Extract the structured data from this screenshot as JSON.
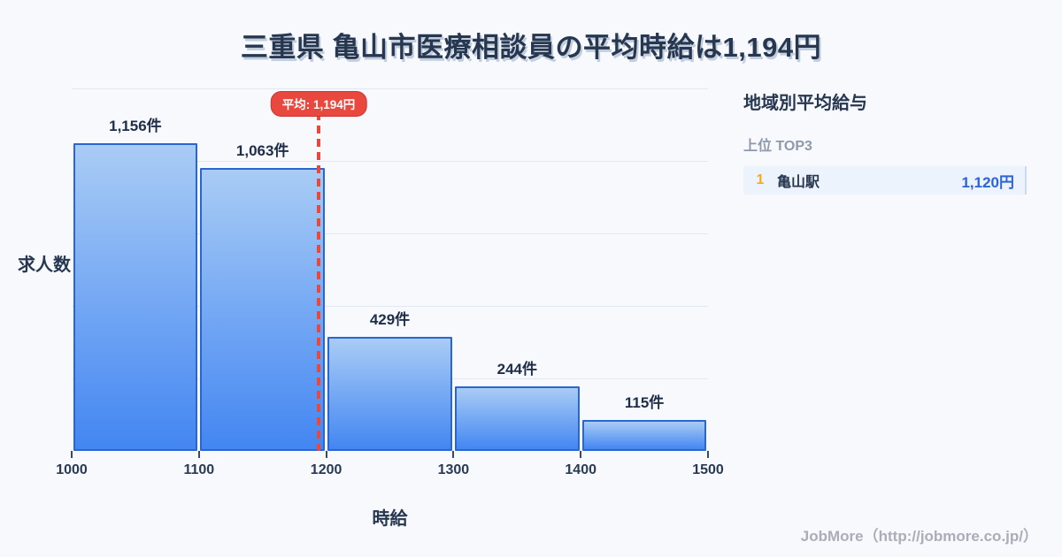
{
  "title": "三重県 亀山市医療相談員の平均時給は1,194円",
  "chart_data": {
    "type": "bar",
    "subtype": "histogram",
    "bin_edges": [
      1000,
      1100,
      1200,
      1300,
      1400,
      1500
    ],
    "categories": [
      "1000-1100",
      "1100-1200",
      "1200-1300",
      "1300-1400",
      "1400-1500"
    ],
    "values": [
      1156,
      1063,
      429,
      244,
      115
    ],
    "value_labels": [
      "1,156件",
      "1,063件",
      "429件",
      "244件",
      "115件"
    ],
    "x_ticks": [
      "1000",
      "1100",
      "1200",
      "1300",
      "1400",
      "1500"
    ],
    "xlabel": "時給",
    "ylabel": "求人数",
    "ylim": [
      0,
      1362
    ],
    "grid": "horizontal",
    "gridline_count": 5,
    "legend": "none",
    "mean": {
      "value": 1194,
      "label": "平均: 1,194円"
    },
    "colors": {
      "bar_top": "#a9ccf5",
      "bar_bottom": "#4386f2",
      "bar_border": "#2a66cf",
      "mean_line": "#e8483d",
      "background": "#f7f9fc"
    }
  },
  "sidebar": {
    "heading": "地域別平均給与",
    "subheading": "上位 TOP3",
    "rows": [
      {
        "rank": "1",
        "name": "亀山駅",
        "value": "1,120円"
      }
    ]
  },
  "footer": {
    "credit": "JobMore（http://jobmore.co.jp/）"
  }
}
